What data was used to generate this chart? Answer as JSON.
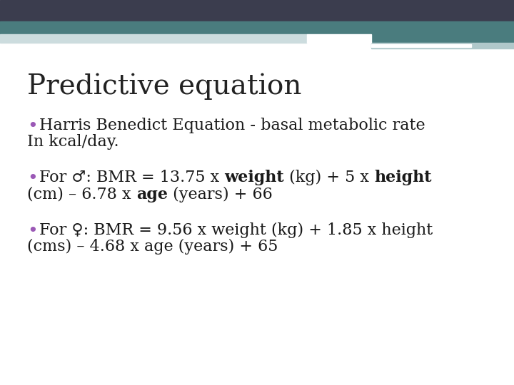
{
  "title": "Predictive equation",
  "title_fontsize": 28,
  "title_color": "#222222",
  "title_font": "DejaVu Serif",
  "background_color": "#ffffff",
  "header_dark_color": "#3b3d4e",
  "header_teal_color": "#4a7c7e",
  "header_light_color": "#b0c8ca",
  "header_lighter_color": "#ccdcde",
  "bullet_color": "#9b59b6",
  "bullet1_line1": "Harris Benedict Equation - basal metabolic rate",
  "bullet1_line2": "In kcal/day.",
  "bullet2_line1_pre": "For ♂: BMR = 13.75 x ",
  "bullet2_bold1": "weight",
  "bullet2_line1_mid": " (kg) + 5 x ",
  "bullet2_bold2": "height",
  "bullet2_line2_pre": "(cm) – 6.78 x ",
  "bullet2_bold3": "age",
  "bullet2_line2_post": " (years) + 66",
  "bullet3_line1": "For ♀: BMR = 9.56 x weight (kg) + 1.85 x height",
  "bullet3_line2": "(cms) – 4.68 x age (years) + 65",
  "text_fontsize": 16,
  "text_color": "#1a1a1a",
  "text_font": "DejaVu Serif"
}
